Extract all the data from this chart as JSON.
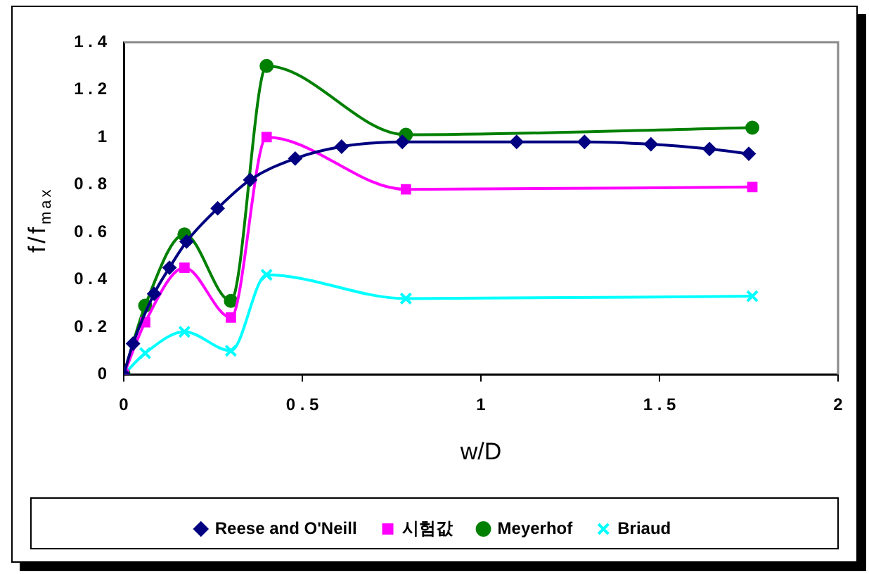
{
  "chart_data": {
    "type": "line",
    "xlabel": "w/D",
    "ylabel": "f/f$_{max}$",
    "xlim": [
      0,
      2
    ],
    "xticks": [
      0,
      0.5,
      1,
      1.5,
      2
    ],
    "ylim": [
      0,
      1.4
    ],
    "yticks": [
      0,
      0.2,
      0.4,
      0.6,
      0.8,
      1,
      1.2,
      1.4
    ],
    "grid": false,
    "legend": "bottom",
    "series": [
      {
        "name": "Reese and O'Neill",
        "color": "#000080",
        "marker": "diamond",
        "x": [
          0,
          0.026,
          0.085,
          0.128,
          0.176,
          0.263,
          0.354,
          0.48,
          0.61,
          0.78,
          1.1,
          1.29,
          1.476,
          1.64,
          1.75
        ],
        "values": [
          0,
          0.13,
          0.34,
          0.45,
          0.56,
          0.7,
          0.82,
          0.91,
          0.96,
          0.98,
          0.98,
          0.98,
          0.97,
          0.95,
          0.93
        ]
      },
      {
        "name": "시험값",
        "color": "#ff00ff",
        "marker": "square",
        "x": [
          0,
          0.06,
          0.17,
          0.3,
          0.4,
          0.79,
          1.76
        ],
        "values": [
          0,
          0.22,
          0.45,
          0.24,
          1.0,
          0.78,
          0.79
        ]
      },
      {
        "name": "Meyerhof",
        "color": "#008000",
        "marker": "circle",
        "x": [
          0,
          0.06,
          0.17,
          0.3,
          0.4,
          0.79,
          1.76
        ],
        "values": [
          0,
          0.29,
          0.59,
          0.31,
          1.3,
          1.01,
          1.04
        ]
      },
      {
        "name": "Briaud",
        "color": "#00ffff",
        "marker": "cross",
        "x": [
          0,
          0.06,
          0.17,
          0.3,
          0.4,
          0.79,
          1.76
        ],
        "values": [
          0,
          0.09,
          0.18,
          0.1,
          0.42,
          0.32,
          0.33
        ]
      }
    ]
  }
}
